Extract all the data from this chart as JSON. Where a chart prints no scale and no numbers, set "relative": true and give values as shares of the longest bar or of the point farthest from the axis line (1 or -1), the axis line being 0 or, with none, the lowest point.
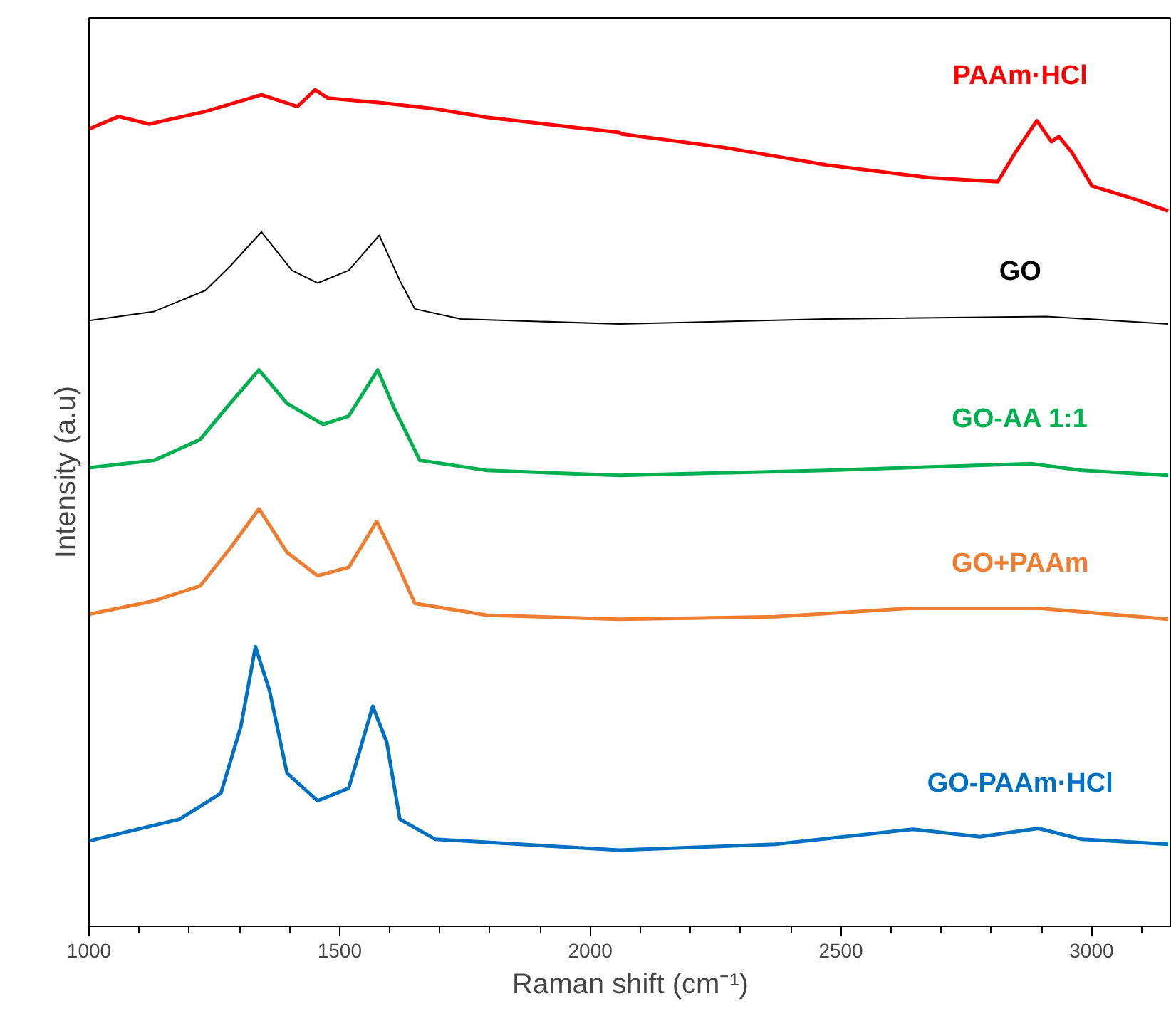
{
  "chart_data": {
    "type": "line",
    "relative": true,
    "xlabel": "Raman shift (cm⁻¹)",
    "ylabel": "Intensity (a.u)",
    "xlim": [
      1000,
      3160
    ],
    "xticks": [
      1000,
      {
        "value": 1100,
        "label": null
      },
      {
        "value": 1200,
        "label": null
      },
      {
        "value": 1300,
        "label": null
      },
      {
        "value": 1400,
        "label": null
      },
      1500,
      {
        "value": 1600,
        "label": null
      },
      {
        "value": 1700,
        "label": null
      },
      {
        "value": 1800,
        "label": null
      },
      {
        "value": 1900,
        "label": null
      },
      2000,
      {
        "value": 2100,
        "label": null
      },
      {
        "value": 2200,
        "label": null
      },
      {
        "value": 2300,
        "label": null
      },
      {
        "value": 2400,
        "label": null
      },
      2500,
      {
        "value": 2600,
        "label": null
      },
      {
        "value": 2700,
        "label": null
      },
      {
        "value": 2800,
        "label": null
      },
      {
        "value": 2900,
        "label": null
      },
      3000,
      {
        "value": 3100,
        "label": null
      }
    ],
    "grid": false,
    "marker": "none",
    "line_style": "solid",
    "series": [
      {
        "name": "PAAm·HCl",
        "color": "#ff0000",
        "x": [
          1000,
          1059,
          1120,
          1232,
          1344,
          1416,
          1451,
          1477,
          1589,
          1691,
          1793,
          1997,
          2058,
          2063,
          2267,
          2471,
          2675,
          2813,
          2848,
          2891,
          2920,
          2935,
          2961,
          3001,
          3083,
          3153
        ],
        "values": [
          0.953,
          0.968,
          0.959,
          0.974,
          0.994,
          0.98,
          1.0,
          0.99,
          0.984,
          0.977,
          0.967,
          0.953,
          0.949,
          0.947,
          0.931,
          0.91,
          0.895,
          0.89,
          0.925,
          0.963,
          0.938,
          0.944,
          0.925,
          0.885,
          0.87,
          0.855
        ]
      },
      {
        "name": "GO",
        "color": "#000000",
        "x": [
          1000,
          1130,
          1232,
          1283,
          1344,
          1405,
          1456,
          1518,
          1579,
          1620,
          1650,
          1742,
          2058,
          2471,
          2910,
          3153
        ],
        "values": [
          0.724,
          0.735,
          0.76,
          0.79,
          0.83,
          0.784,
          0.769,
          0.784,
          0.826,
          0.772,
          0.738,
          0.726,
          0.72,
          0.726,
          0.729,
          0.72
        ]
      },
      {
        "name": "GO-AA 1:1",
        "color": "#00b050",
        "x": [
          1000,
          1130,
          1222,
          1273,
          1339,
          1395,
          1467,
          1518,
          1576,
          1609,
          1660,
          1793,
          2058,
          2471,
          2879,
          2981,
          3153
        ],
        "values": [
          0.548,
          0.557,
          0.582,
          0.619,
          0.665,
          0.625,
          0.6,
          0.61,
          0.665,
          0.619,
          0.557,
          0.545,
          0.539,
          0.545,
          0.553,
          0.545,
          0.539
        ]
      },
      {
        "name": "GO+PAAm",
        "color": "#ed7d31",
        "x": [
          1000,
          1130,
          1222,
          1283,
          1339,
          1395,
          1456,
          1518,
          1574,
          1609,
          1650,
          1793,
          2058,
          2369,
          2634,
          2899,
          3153
        ],
        "values": [
          0.373,
          0.389,
          0.407,
          0.453,
          0.499,
          0.447,
          0.419,
          0.429,
          0.484,
          0.441,
          0.386,
          0.372,
          0.367,
          0.37,
          0.38,
          0.38,
          0.367
        ]
      },
      {
        "name": "GO-PAAm·HCl",
        "color": "#0070c0",
        "x": [
          1000,
          1181,
          1263,
          1303,
          1332,
          1360,
          1395,
          1456,
          1518,
          1566,
          1594,
          1620,
          1691,
          2058,
          2369,
          2644,
          2777,
          2894,
          2981,
          3153
        ],
        "values": [
          0.102,
          0.128,
          0.159,
          0.239,
          0.334,
          0.282,
          0.183,
          0.15,
          0.165,
          0.263,
          0.22,
          0.128,
          0.104,
          0.091,
          0.098,
          0.116,
          0.107,
          0.117,
          0.104,
          0.098
        ]
      }
    ]
  }
}
